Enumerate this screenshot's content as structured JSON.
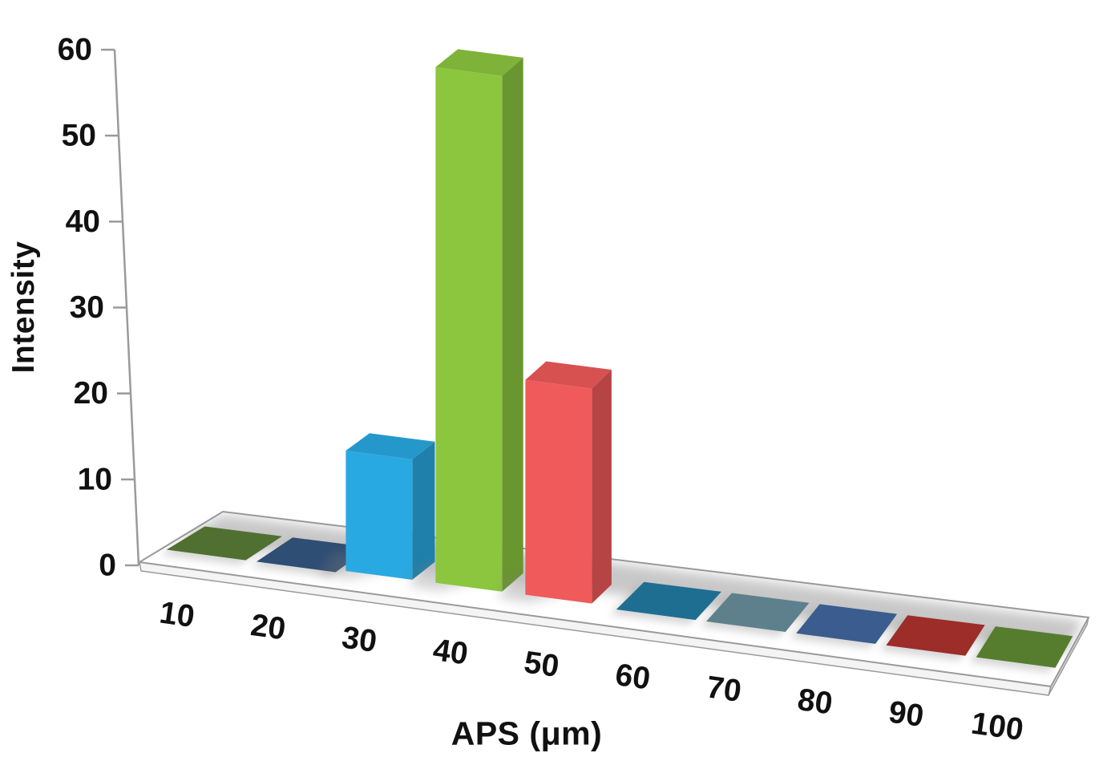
{
  "chart_data": {
    "type": "bar",
    "style": "3d-column; zero values rendered as flat colored tiles on the chart floor",
    "title": "",
    "xlabel": "APS (μm)",
    "ylabel": "Intensity",
    "categories": [
      "10",
      "20",
      "30",
      "40",
      "50",
      "60",
      "70",
      "80",
      "90",
      "100"
    ],
    "values": [
      0,
      0,
      14,
      60,
      25,
      0,
      0,
      0,
      0,
      0
    ],
    "bar_colors": [
      "#507031",
      "#2F4E74",
      "#29A9E1",
      "#8CC63F",
      "#F05A5A",
      "#1E6E92",
      "#5E808C",
      "#3A5C8E",
      "#9C2D28",
      "#567D2E"
    ],
    "y_ticks": [
      0,
      10,
      20,
      30,
      40,
      50,
      60
    ],
    "ylim": [
      0,
      60
    ],
    "grid": "off",
    "legend": "none",
    "axis_color": "#9a9a9a",
    "text_color": "#111111"
  }
}
